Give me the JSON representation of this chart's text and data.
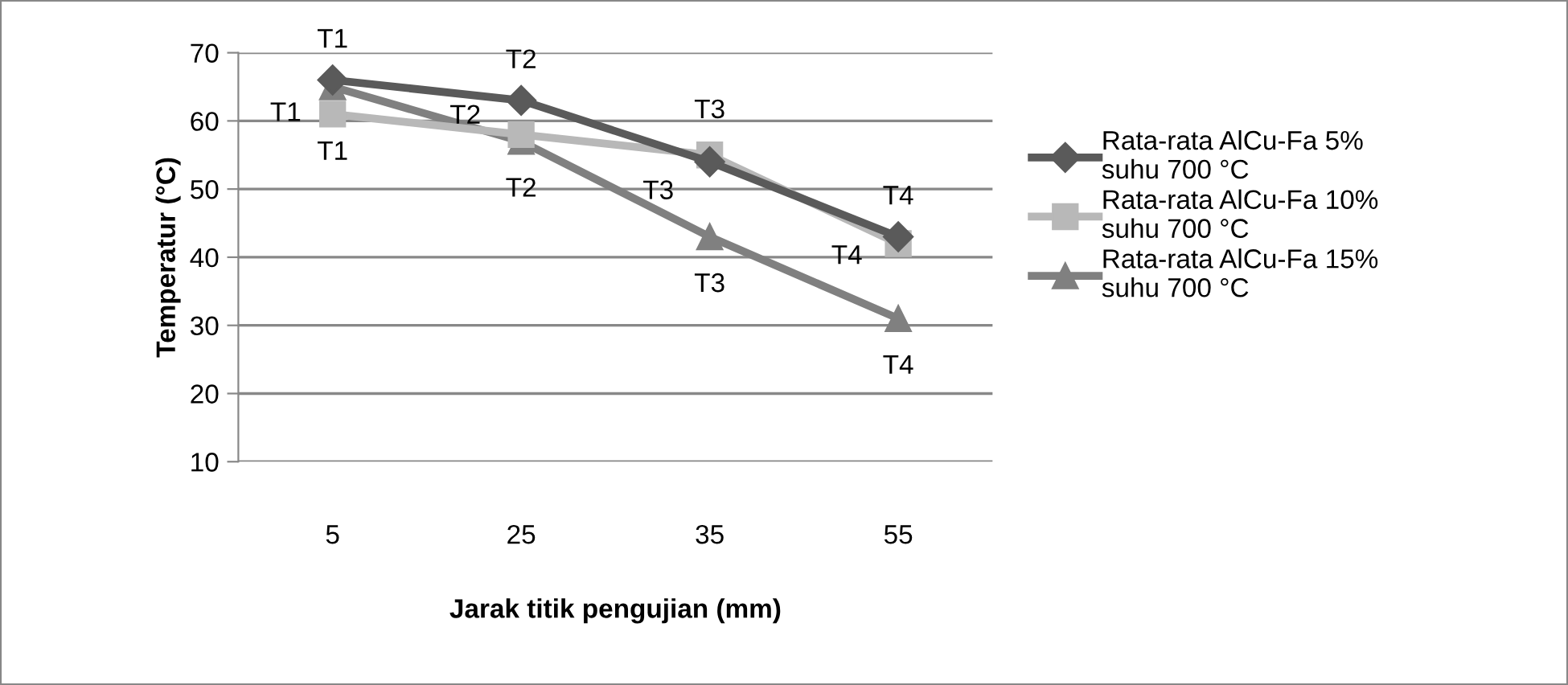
{
  "chart_data": {
    "type": "line",
    "xlabel": "Jarak titik pengujian (mm)",
    "ylabel": "Temperatur (°C)",
    "categories": [
      "5",
      "25",
      "35",
      "55"
    ],
    "series": [
      {
        "name": "Rata-rata AlCu-Fa 5%\nsuhu 700 °C",
        "color": "#5a5a5a",
        "marker": "diamond",
        "values": [
          66,
          63,
          54,
          43
        ],
        "value_labels": [
          "T1",
          "T2",
          "T3",
          "T4"
        ]
      },
      {
        "name": "Rata-rata AlCu-Fa 10%\nsuhu 700 °C",
        "color": "#b8b8b8",
        "marker": "square",
        "values": [
          61,
          58,
          55,
          42
        ],
        "value_labels": [
          "T1",
          "T2",
          "T3",
          "T4"
        ]
      },
      {
        "name": "Rata-rata AlCu-Fa 15%\nsuhu 700 °C",
        "color": "#808080",
        "marker": "triangle",
        "values": [
          65,
          57,
          43,
          31
        ],
        "value_labels": [
          "T1",
          "T2",
          "T3",
          "T4"
        ]
      }
    ],
    "ylim": [
      10,
      70
    ],
    "yticks": [
      10,
      20,
      30,
      40,
      50,
      60,
      70
    ],
    "grid": "y",
    "legend": "right",
    "line_style": "solid"
  }
}
